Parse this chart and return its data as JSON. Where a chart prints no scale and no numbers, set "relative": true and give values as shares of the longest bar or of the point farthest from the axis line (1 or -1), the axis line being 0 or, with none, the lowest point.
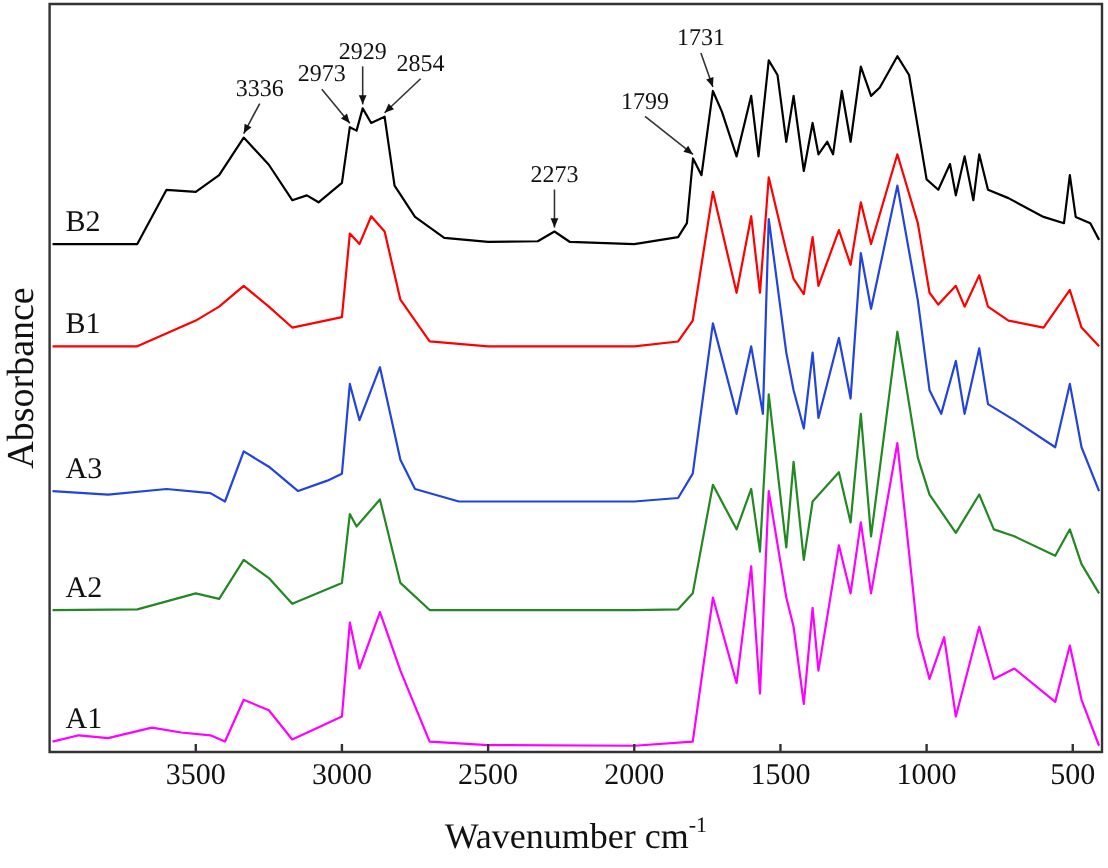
{
  "chart_data": {
    "type": "line",
    "relative": true,
    "xlabel": "Wavenumber cm$^{-1}$",
    "ylabel": "Absorbance",
    "xlim": [
      4000,
      400
    ],
    "xticks": [
      3500,
      3000,
      2500,
      2000,
      1500,
      1000,
      500
    ],
    "grid": false,
    "legend": false,
    "marker": "none",
    "line_style": "solid",
    "series": [
      {
        "name": "B2",
        "color": "#000000",
        "x": [
          3990,
          3700,
          3600,
          3500,
          3420,
          3336,
          3250,
          3170,
          3120,
          3080,
          3000,
          2973,
          2950,
          2929,
          2900,
          2854,
          2820,
          2750,
          2650,
          2500,
          2330,
          2273,
          2220,
          2000,
          1850,
          1820,
          1799,
          1770,
          1731,
          1700,
          1650,
          1600,
          1575,
          1540,
          1510,
          1480,
          1455,
          1420,
          1390,
          1370,
          1340,
          1320,
          1290,
          1260,
          1225,
          1190,
          1160,
          1100,
          1060,
          1030,
          1000,
          960,
          920,
          900,
          870,
          840,
          820,
          790,
          720,
          600,
          530,
          510,
          490,
          440,
          410
        ],
        "values": [
          0.73,
          0.73,
          0.808,
          0.805,
          0.829,
          0.883,
          0.844,
          0.793,
          0.8,
          0.79,
          0.818,
          0.898,
          0.893,
          0.925,
          0.904,
          0.913,
          0.814,
          0.769,
          0.739,
          0.733,
          0.734,
          0.748,
          0.733,
          0.73,
          0.74,
          0.76,
          0.853,
          0.829,
          0.95,
          0.92,
          0.856,
          0.943,
          0.856,
          0.994,
          0.973,
          0.877,
          0.943,
          0.835,
          0.904,
          0.859,
          0.877,
          0.859,
          0.95,
          0.877,
          0.985,
          0.943,
          0.955,
          1.0,
          0.973,
          0.898,
          0.823,
          0.808,
          0.845,
          0.8,
          0.856,
          0.793,
          0.859,
          0.808,
          0.796,
          0.769,
          0.76,
          0.829,
          0.769,
          0.76,
          0.736
        ]
      },
      {
        "name": "B1",
        "color": "#ff0000",
        "x": [
          3990,
          3700,
          3500,
          3420,
          3336,
          3250,
          3170,
          3000,
          2973,
          2940,
          2900,
          2854,
          2800,
          2700,
          2500,
          2000,
          1850,
          1800,
          1731,
          1650,
          1600,
          1570,
          1540,
          1480,
          1455,
          1420,
          1390,
          1370,
          1300,
          1260,
          1225,
          1190,
          1100,
          1030,
          990,
          960,
          900,
          870,
          820,
          790,
          720,
          600,
          510,
          470,
          410
        ],
        "values": [
          0.583,
          0.583,
          0.62,
          0.64,
          0.67,
          0.64,
          0.61,
          0.625,
          0.745,
          0.73,
          0.77,
          0.748,
          0.65,
          0.59,
          0.583,
          0.583,
          0.59,
          0.62,
          0.805,
          0.66,
          0.77,
          0.66,
          0.826,
          0.72,
          0.68,
          0.658,
          0.74,
          0.67,
          0.75,
          0.7,
          0.79,
          0.73,
          0.859,
          0.76,
          0.66,
          0.643,
          0.67,
          0.64,
          0.685,
          0.64,
          0.62,
          0.61,
          0.664,
          0.61,
          0.583
        ]
      },
      {
        "name": "A3",
        "color": "#2244dd",
        "x": [
          3990,
          3800,
          3600,
          3450,
          3400,
          3336,
          3250,
          3150,
          3050,
          3000,
          2973,
          2940,
          2870,
          2800,
          2750,
          2600,
          2000,
          1850,
          1800,
          1731,
          1650,
          1600,
          1560,
          1540,
          1480,
          1455,
          1420,
          1390,
          1370,
          1300,
          1260,
          1225,
          1190,
          1100,
          1030,
          990,
          950,
          900,
          870,
          820,
          790,
          700,
          560,
          510,
          470,
          410
        ],
        "values": [
          0.375,
          0.37,
          0.378,
          0.372,
          0.36,
          0.432,
          0.41,
          0.375,
          0.39,
          0.4,
          0.529,
          0.477,
          0.553,
          0.42,
          0.378,
          0.36,
          0.36,
          0.365,
          0.4,
          0.616,
          0.486,
          0.583,
          0.486,
          0.766,
          0.574,
          0.52,
          0.465,
          0.574,
          0.48,
          0.595,
          0.508,
          0.717,
          0.637,
          0.814,
          0.649,
          0.52,
          0.486,
          0.562,
          0.486,
          0.58,
          0.5,
          0.477,
          0.438,
          0.529,
          0.438,
          0.375
        ]
      },
      {
        "name": "A2",
        "color": "#228822",
        "x": [
          3990,
          3700,
          3500,
          3420,
          3336,
          3250,
          3170,
          3000,
          2973,
          2950,
          2870,
          2800,
          2700,
          2000,
          1850,
          1800,
          1731,
          1650,
          1600,
          1570,
          1540,
          1480,
          1455,
          1420,
          1390,
          1300,
          1260,
          1225,
          1190,
          1100,
          1030,
          990,
          900,
          820,
          770,
          700,
          560,
          510,
          470,
          410
        ],
        "values": [
          0.204,
          0.205,
          0.228,
          0.22,
          0.276,
          0.25,
          0.213,
          0.243,
          0.342,
          0.324,
          0.363,
          0.243,
          0.204,
          0.204,
          0.205,
          0.228,
          0.384,
          0.32,
          0.378,
          0.288,
          0.514,
          0.294,
          0.417,
          0.276,
          0.36,
          0.402,
          0.33,
          0.486,
          0.31,
          0.604,
          0.423,
          0.37,
          0.315,
          0.37,
          0.32,
          0.31,
          0.282,
          0.32,
          0.27,
          0.228
        ]
      },
      {
        "name": "A1",
        "color": "#ff00ff",
        "x": [
          3990,
          3900,
          3800,
          3650,
          3550,
          3450,
          3400,
          3336,
          3250,
          3170,
          3000,
          2973,
          2940,
          2870,
          2800,
          2700,
          2500,
          2000,
          1800,
          1731,
          1650,
          1600,
          1570,
          1540,
          1480,
          1455,
          1420,
          1390,
          1370,
          1300,
          1260,
          1225,
          1190,
          1100,
          1030,
          990,
          940,
          900,
          820,
          770,
          700,
          560,
          510,
          470,
          410
        ],
        "values": [
          0.015,
          0.024,
          0.02,
          0.035,
          0.028,
          0.024,
          0.015,
          0.075,
          0.06,
          0.018,
          0.051,
          0.186,
          0.12,
          0.201,
          0.117,
          0.015,
          0.01,
          0.009,
          0.015,
          0.222,
          0.099,
          0.267,
          0.084,
          0.375,
          0.222,
          0.18,
          0.069,
          0.207,
          0.117,
          0.297,
          0.228,
          0.33,
          0.228,
          0.444,
          0.168,
          0.105,
          0.165,
          0.051,
          0.18,
          0.105,
          0.12,
          0.072,
          0.153,
          0.075,
          0.009
        ]
      }
    ],
    "annotations": [
      {
        "text": "3336",
        "x": 3336,
        "y": 0.883
      },
      {
        "text": "2973",
        "x": 2973,
        "y": 0.898
      },
      {
        "text": "2929",
        "x": 2929,
        "y": 0.925
      },
      {
        "text": "2854",
        "x": 2854,
        "y": 0.913
      },
      {
        "text": "2273",
        "x": 2273,
        "y": 0.748
      },
      {
        "text": "1799",
        "x": 1799,
        "y": 0.853
      },
      {
        "text": "1731",
        "x": 1731,
        "y": 0.95
      }
    ]
  }
}
